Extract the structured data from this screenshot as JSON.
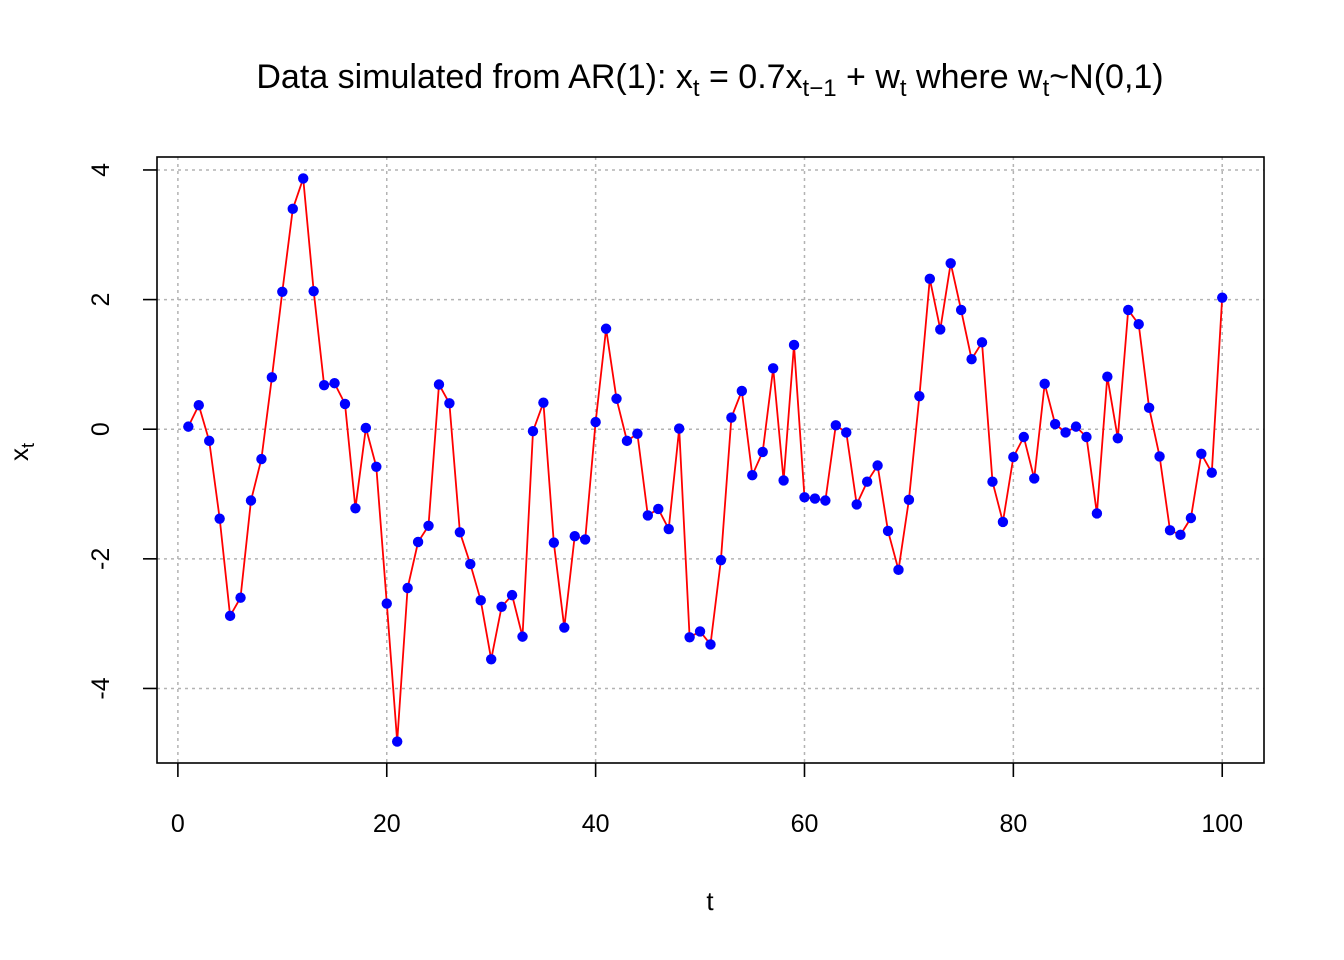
{
  "chart_data": {
    "type": "line",
    "title": {
      "main": "Data simulated from AR(1): x",
      "s1": "t",
      "p2": " = 0.7x",
      "s2": "t−1",
      "p3": " + w",
      "s3": "t",
      "p4": " where w",
      "s4": "t",
      "p5": "~N(0,1)"
    },
    "xlabel": "t",
    "ylabel": {
      "main": "x",
      "sub": "t"
    },
    "xlim": [
      -2,
      104
    ],
    "ylim": [
      -5.15,
      4.2
    ],
    "xticks": [
      0,
      20,
      40,
      60,
      80,
      100
    ],
    "yticks": [
      -4,
      -2,
      0,
      2,
      4
    ],
    "grid": true,
    "line_color": "#ff0000",
    "point_color": "#0000ff",
    "x": [
      1,
      2,
      3,
      4,
      5,
      6,
      7,
      8,
      9,
      10,
      11,
      12,
      13,
      14,
      15,
      16,
      17,
      18,
      19,
      20,
      21,
      22,
      23,
      24,
      25,
      26,
      27,
      28,
      29,
      30,
      31,
      32,
      33,
      34,
      35,
      36,
      37,
      38,
      39,
      40,
      41,
      42,
      43,
      44,
      45,
      46,
      47,
      48,
      49,
      50,
      51,
      52,
      53,
      54,
      55,
      56,
      57,
      58,
      59,
      60,
      61,
      62,
      63,
      64,
      65,
      66,
      67,
      68,
      69,
      70,
      71,
      72,
      73,
      74,
      75,
      76,
      77,
      78,
      79,
      80,
      81,
      82,
      83,
      84,
      85,
      86,
      87,
      88,
      89,
      90,
      91,
      92,
      93,
      94,
      95,
      96,
      97,
      98,
      99,
      100
    ],
    "values": [
      0.04,
      0.37,
      -0.18,
      -1.38,
      -2.88,
      -2.6,
      -1.1,
      -0.46,
      0.8,
      2.12,
      3.4,
      3.87,
      2.13,
      0.68,
      0.71,
      0.39,
      -1.22,
      0.02,
      -0.58,
      -2.69,
      -4.82,
      -2.45,
      -1.74,
      -1.49,
      0.69,
      0.4,
      -1.59,
      -2.08,
      -2.64,
      -3.55,
      -2.74,
      -2.56,
      -3.2,
      -0.03,
      0.41,
      -1.75,
      -3.06,
      -1.65,
      -1.7,
      0.11,
      1.55,
      0.47,
      -0.18,
      -0.07,
      -1.33,
      -1.23,
      -1.54,
      0.01,
      -3.21,
      -3.12,
      -3.32,
      -2.02,
      0.18,
      0.59,
      -0.71,
      -0.35,
      0.94,
      -0.79,
      1.3,
      -1.05,
      -1.07,
      -1.1,
      0.06,
      -0.05,
      -1.16,
      -0.81,
      -0.56,
      -1.57,
      -2.17,
      -1.09,
      0.51,
      2.32,
      1.54,
      2.56,
      1.84,
      1.08,
      1.34,
      -0.81,
      -1.43,
      -0.43,
      -0.12,
      -0.76,
      0.7,
      0.08,
      -0.05,
      0.04,
      -0.12,
      -1.3,
      0.81,
      -0.14,
      1.84,
      1.62,
      0.33,
      -0.42,
      -1.56,
      -1.63,
      -1.37,
      -0.38,
      -0.67,
      2.03
    ]
  }
}
